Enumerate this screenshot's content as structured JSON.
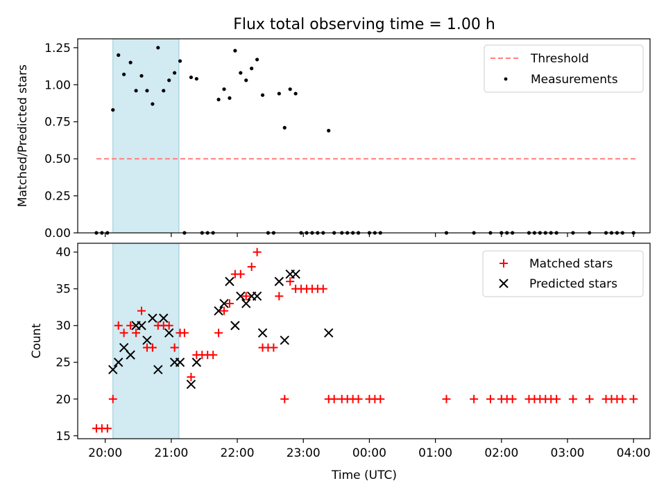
{
  "chart_data": [
    {
      "type": "scatter",
      "title": "Flux total observing time = 1.00 h",
      "xlabel": "",
      "ylabel": "Matched/Predicted stars",
      "xlim": [
        "19:35",
        "04:15"
      ],
      "ylim": [
        0,
        1.31
      ],
      "yticks": [
        "0.00",
        "0.25",
        "0.50",
        "0.75",
        "1.00",
        "1.25"
      ],
      "xticks": [
        "20:00",
        "21:00",
        "22:00",
        "23:00",
        "00:00",
        "01:00",
        "02:00",
        "03:00",
        "04:00"
      ],
      "shaded_interval": {
        "x": [
          "20:07",
          "21:07"
        ],
        "color": "#add8e6"
      },
      "threshold": {
        "name": "Threshold",
        "value": 0.5,
        "x": [
          "19:52",
          "04:04"
        ],
        "color": "#ff8080"
      },
      "legend": {
        "position": "top-right",
        "entries": [
          "Threshold",
          "Measurements"
        ]
      },
      "series": [
        {
          "name": "Measurements",
          "color": "#000000",
          "points": [
            [
              "19:52",
              0
            ],
            [
              "19:57",
              0
            ],
            [
              "20:02",
              0
            ],
            [
              "20:07",
              0.83
            ],
            [
              "20:12",
              1.2
            ],
            [
              "20:17",
              1.07
            ],
            [
              "20:23",
              1.15
            ],
            [
              "20:28",
              0.96
            ],
            [
              "20:33",
              1.06
            ],
            [
              "20:38",
              0.96
            ],
            [
              "20:43",
              0.87
            ],
            [
              "20:48",
              1.25
            ],
            [
              "20:53",
              0.96
            ],
            [
              "20:58",
              1.03
            ],
            [
              "21:03",
              1.08
            ],
            [
              "21:08",
              1.16
            ],
            [
              "21:12",
              0
            ],
            [
              "21:18",
              1.05
            ],
            [
              "21:23",
              1.04
            ],
            [
              "21:28",
              0
            ],
            [
              "21:33",
              0
            ],
            [
              "21:38",
              0
            ],
            [
              "21:43",
              0.9
            ],
            [
              "21:48",
              0.97
            ],
            [
              "21:53",
              0.91
            ],
            [
              "21:58",
              1.23
            ],
            [
              "22:03",
              1.08
            ],
            [
              "22:08",
              1.03
            ],
            [
              "22:13",
              1.11
            ],
            [
              "22:18",
              1.17
            ],
            [
              "22:23",
              0.93
            ],
            [
              "22:28",
              0
            ],
            [
              "22:33",
              0
            ],
            [
              "22:38",
              0.94
            ],
            [
              "22:43",
              0.71
            ],
            [
              "22:48",
              0.97
            ],
            [
              "22:53",
              0.94
            ],
            [
              "22:58",
              0
            ],
            [
              "23:03",
              0
            ],
            [
              "23:08",
              0
            ],
            [
              "23:13",
              0
            ],
            [
              "23:18",
              0
            ],
            [
              "23:23",
              0.69
            ],
            [
              "23:28",
              0
            ],
            [
              "23:35",
              0
            ],
            [
              "23:40",
              0
            ],
            [
              "23:45",
              0
            ],
            [
              "23:50",
              0
            ],
            [
              "00:00",
              0
            ],
            [
              "00:05",
              0
            ],
            [
              "00:10",
              0
            ],
            [
              "01:10",
              0
            ],
            [
              "01:35",
              0
            ],
            [
              "01:50",
              0
            ],
            [
              "02:00",
              0
            ],
            [
              "02:05",
              0
            ],
            [
              "02:10",
              0
            ],
            [
              "02:25",
              0
            ],
            [
              "02:30",
              0
            ],
            [
              "02:35",
              0
            ],
            [
              "02:40",
              0
            ],
            [
              "02:45",
              0
            ],
            [
              "02:50",
              0
            ],
            [
              "03:05",
              0
            ],
            [
              "03:20",
              0
            ],
            [
              "03:35",
              0
            ],
            [
              "03:40",
              0
            ],
            [
              "03:45",
              0
            ],
            [
              "03:50",
              0
            ],
            [
              "04:00",
              0
            ]
          ]
        }
      ]
    },
    {
      "type": "scatter",
      "title": "",
      "xlabel": "Time (UTC)",
      "ylabel": "Count",
      "xlim": [
        "19:35",
        "04:15"
      ],
      "ylim": [
        14.6,
        41.2
      ],
      "yticks": [
        "15",
        "20",
        "25",
        "30",
        "35",
        "40"
      ],
      "xticks": [
        "20:00",
        "21:00",
        "22:00",
        "23:00",
        "00:00",
        "01:00",
        "02:00",
        "03:00",
        "04:00"
      ],
      "shaded_interval": {
        "x": [
          "20:07",
          "21:07"
        ],
        "color": "#add8e6"
      },
      "legend": {
        "position": "top-right",
        "entries": [
          "Matched stars",
          "Predicted stars"
        ]
      },
      "series": [
        {
          "name": "Matched stars",
          "marker": "plus",
          "color": "#ff0000",
          "points": [
            [
              "19:52",
              16
            ],
            [
              "19:57",
              16
            ],
            [
              "20:02",
              16
            ],
            [
              "20:07",
              20
            ],
            [
              "20:12",
              30
            ],
            [
              "20:17",
              29
            ],
            [
              "20:23",
              30
            ],
            [
              "20:28",
              29
            ],
            [
              "20:33",
              32
            ],
            [
              "20:38",
              27
            ],
            [
              "20:43",
              27
            ],
            [
              "20:48",
              30
            ],
            [
              "20:53",
              30
            ],
            [
              "20:58",
              30
            ],
            [
              "21:03",
              27
            ],
            [
              "21:08",
              29
            ],
            [
              "21:12",
              29
            ],
            [
              "21:18",
              23
            ],
            [
              "21:23",
              26
            ],
            [
              "21:28",
              26
            ],
            [
              "21:33",
              26
            ],
            [
              "21:38",
              26
            ],
            [
              "21:43",
              29
            ],
            [
              "21:48",
              32
            ],
            [
              "21:53",
              33
            ],
            [
              "21:58",
              37
            ],
            [
              "22:03",
              37
            ],
            [
              "22:08",
              34
            ],
            [
              "22:13",
              38
            ],
            [
              "22:18",
              40
            ],
            [
              "22:23",
              27
            ],
            [
              "22:28",
              27
            ],
            [
              "22:33",
              27
            ],
            [
              "22:38",
              34
            ],
            [
              "22:43",
              20
            ],
            [
              "22:48",
              36
            ],
            [
              "22:53",
              35
            ],
            [
              "22:58",
              35
            ],
            [
              "23:03",
              35
            ],
            [
              "23:08",
              35
            ],
            [
              "23:13",
              35
            ],
            [
              "23:18",
              35
            ],
            [
              "23:23",
              20
            ],
            [
              "23:28",
              20
            ],
            [
              "23:35",
              20
            ],
            [
              "23:40",
              20
            ],
            [
              "23:45",
              20
            ],
            [
              "23:50",
              20
            ],
            [
              "00:00",
              20
            ],
            [
              "00:05",
              20
            ],
            [
              "00:10",
              20
            ],
            [
              "01:10",
              20
            ],
            [
              "01:35",
              20
            ],
            [
              "01:50",
              20
            ],
            [
              "02:00",
              20
            ],
            [
              "02:05",
              20
            ],
            [
              "02:10",
              20
            ],
            [
              "02:25",
              20
            ],
            [
              "02:30",
              20
            ],
            [
              "02:35",
              20
            ],
            [
              "02:40",
              20
            ],
            [
              "02:45",
              20
            ],
            [
              "02:50",
              20
            ],
            [
              "03:05",
              20
            ],
            [
              "03:20",
              20
            ],
            [
              "03:35",
              20
            ],
            [
              "03:40",
              20
            ],
            [
              "03:45",
              20
            ],
            [
              "03:50",
              20
            ],
            [
              "04:00",
              20
            ]
          ]
        },
        {
          "name": "Predicted stars",
          "marker": "x",
          "color": "#000000",
          "points": [
            [
              "20:07",
              24
            ],
            [
              "20:12",
              25
            ],
            [
              "20:17",
              27
            ],
            [
              "20:23",
              26
            ],
            [
              "20:28",
              30
            ],
            [
              "20:33",
              30
            ],
            [
              "20:38",
              28
            ],
            [
              "20:43",
              31
            ],
            [
              "20:48",
              24
            ],
            [
              "20:53",
              31
            ],
            [
              "20:58",
              29
            ],
            [
              "21:03",
              25
            ],
            [
              "21:08",
              25
            ],
            [
              "21:18",
              22
            ],
            [
              "21:23",
              25
            ],
            [
              "21:43",
              32
            ],
            [
              "21:48",
              33
            ],
            [
              "21:53",
              36
            ],
            [
              "21:58",
              30
            ],
            [
              "22:03",
              34
            ],
            [
              "22:08",
              33
            ],
            [
              "22:13",
              34
            ],
            [
              "22:18",
              34
            ],
            [
              "22:23",
              29
            ],
            [
              "22:38",
              36
            ],
            [
              "22:43",
              28
            ],
            [
              "22:48",
              37
            ],
            [
              "22:53",
              37
            ],
            [
              "23:23",
              29
            ]
          ]
        }
      ]
    }
  ]
}
